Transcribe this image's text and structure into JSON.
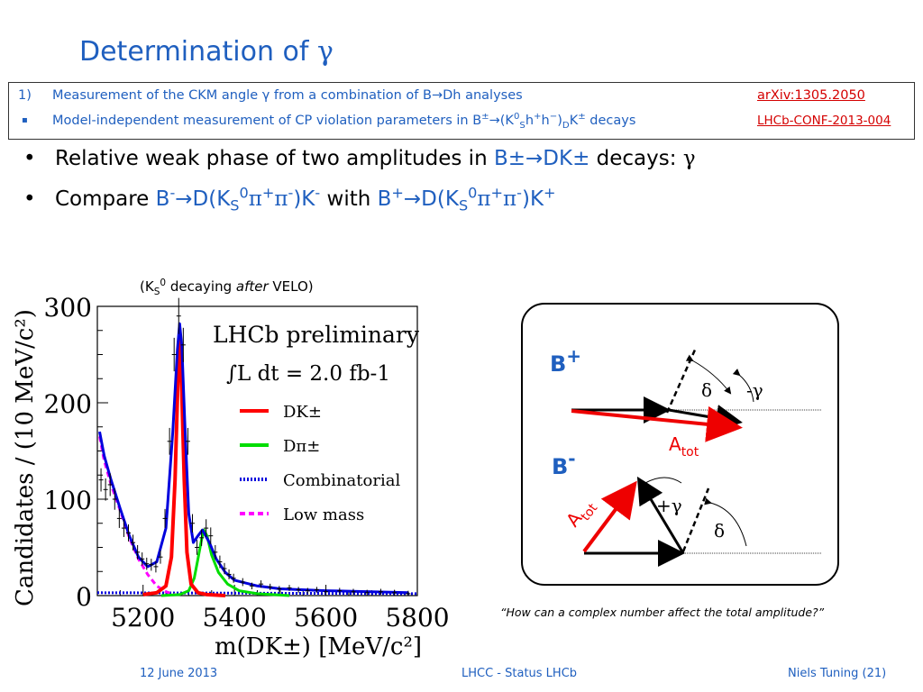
{
  "slide": {
    "title_text": "Determination of ",
    "title_symbol": "γ"
  },
  "refs": [
    {
      "num": "1)",
      "text": "Measurement of the CKM angle γ from a combination of B→Dh analyses",
      "link": "arXiv:1305.2050"
    },
    {
      "num": "▪",
      "text_parts": [
        "Model-independent measurement of CP violation parameters in B",
        "±",
        "→(K",
        "0",
        "S",
        "h",
        "+",
        "h",
        "−",
        ")",
        "D",
        "K",
        "±",
        " decays"
      ],
      "link": "LHCb-CONF-2013-004"
    }
  ],
  "bullets": {
    "dot": "•",
    "b1": {
      "pre": "Relative weak phase of two amplitudes in ",
      "hl": "B±→DK±",
      "post": " decays: ",
      "sym": "γ"
    },
    "b2": {
      "pre": "Compare ",
      "with": " with "
    }
  },
  "caption_ks": {
    "pre": "(K",
    "sub": "S",
    "sup": "0",
    "mid": " decaying ",
    "em": "after",
    "post": " VELO)"
  },
  "chart_data": {
    "type": "histogram",
    "xlabel": "m(DK±) [MeV/c²]",
    "ylabel": "Candidates / (10 MeV/c²)",
    "xlim": [
      5100,
      5800
    ],
    "ylim": [
      0,
      300
    ],
    "xticks": [
      5200,
      5400,
      5600,
      5800
    ],
    "yticks": [
      0,
      100,
      200,
      300
    ],
    "text_lines": [
      "LHCb preliminary",
      "∫L dt = 2.0 fb-1"
    ],
    "legend": [
      {
        "name": "DK±",
        "color": "#ff0000",
        "style": "solid"
      },
      {
        "name": "Dπ±",
        "color": "#00dd00",
        "style": "solid"
      },
      {
        "name": "Combinatorial",
        "color": "#0000dd",
        "style": "dotted"
      },
      {
        "name": "Low mass",
        "color": "#ff00ff",
        "style": "dashed"
      }
    ],
    "total_fit": {
      "x": [
        5105,
        5115,
        5130,
        5150,
        5170,
        5190,
        5210,
        5230,
        5250,
        5265,
        5275,
        5280,
        5285,
        5292,
        5300,
        5310,
        5320,
        5330,
        5345,
        5360,
        5380,
        5400,
        5450,
        5500,
        5600,
        5700,
        5780
      ],
      "y": [
        170,
        145,
        120,
        90,
        62,
        40,
        30,
        35,
        70,
        170,
        255,
        282,
        258,
        170,
        85,
        55,
        62,
        68,
        55,
        38,
        24,
        16,
        10,
        7,
        5,
        4,
        3
      ]
    },
    "dk_signal": {
      "x": [
        5200,
        5230,
        5250,
        5262,
        5270,
        5276,
        5280,
        5284,
        5290,
        5296,
        5305,
        5320,
        5340,
        5380
      ],
      "y": [
        1,
        3,
        10,
        40,
        120,
        220,
        272,
        225,
        120,
        45,
        12,
        3,
        1,
        0
      ]
    },
    "dpi_signal": {
      "x": [
        5240,
        5280,
        5300,
        5312,
        5320,
        5328,
        5333,
        5340,
        5350,
        5365,
        5385,
        5410,
        5450,
        5520
      ],
      "y": [
        0,
        1,
        5,
        18,
        38,
        58,
        68,
        62,
        42,
        24,
        12,
        5,
        2,
        0
      ]
    },
    "combinatorial": {
      "x": [
        5100,
        5800
      ],
      "y": [
        3,
        2
      ]
    },
    "low_mass": {
      "x": [
        5105,
        5115,
        5130,
        5150,
        5170,
        5190,
        5210,
        5230,
        5250,
        5270
      ],
      "y": [
        165,
        140,
        115,
        88,
        60,
        38,
        22,
        10,
        4,
        1
      ]
    },
    "data_points": {
      "x": [
        5108,
        5118,
        5128,
        5138,
        5148,
        5158,
        5168,
        5178,
        5188,
        5198,
        5208,
        5218,
        5228,
        5238,
        5248,
        5258,
        5268,
        5278,
        5288,
        5298,
        5308,
        5318,
        5328,
        5338,
        5348,
        5358,
        5368,
        5378,
        5388,
        5398,
        5418,
        5438,
        5458,
        5478,
        5498,
        5520,
        5540,
        5560,
        5580,
        5600,
        5630,
        5660,
        5690,
        5720,
        5750,
        5780
      ],
      "y": [
        120,
        110,
        115,
        100,
        80,
        70,
        65,
        55,
        45,
        38,
        33,
        32,
        30,
        40,
        80,
        160,
        250,
        290,
        260,
        160,
        75,
        50,
        60,
        70,
        62,
        45,
        35,
        28,
        22,
        18,
        14,
        10,
        12,
        9,
        7,
        8,
        6,
        5,
        6,
        4,
        5,
        4,
        3,
        4,
        3,
        2
      ]
    }
  },
  "diagram": {
    "bplus_label": "B",
    "bplus_sup": "+",
    "bminus_label": "B",
    "bminus_sup": "-",
    "delta": "δ",
    "minus_gamma": "-γ",
    "plus_gamma": "+γ",
    "atot": "A",
    "atot_sub": "tot"
  },
  "quote": "“How can a complex number affect the total amplitude?”",
  "footer": {
    "date": "12 June 2013",
    "center": "LHCC - Status LHCb",
    "right": "Niels Tuning (21)"
  }
}
